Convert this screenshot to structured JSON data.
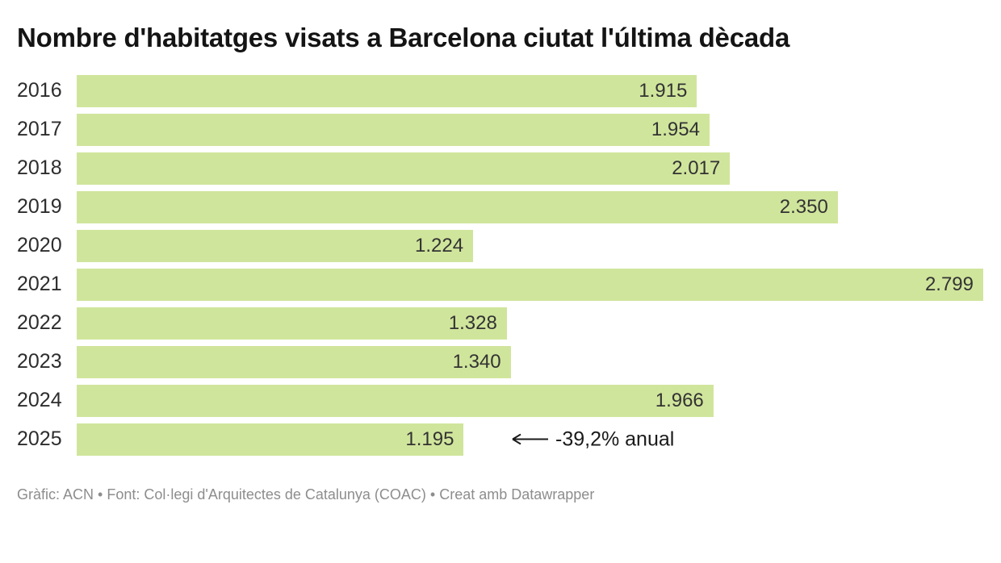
{
  "header": {
    "title": "Nombre d'habitatges visats a Barcelona ciutat l'última dècada"
  },
  "annotation": {
    "row": "2025",
    "arrow_icon": "left-arrow",
    "text": "-39,2% anual"
  },
  "footer": {
    "text": "Gràfic: ACN • Font: Col·legi d'Arquitectes de Catalunya (COAC) • Creat amb Datawrapper"
  },
  "colors": {
    "bar": "#d0e59c",
    "title": "#141414",
    "axis_label": "#2d2d2d",
    "value_label": "#333333",
    "annotation": "#1a1a1a",
    "footer": "#8d8d8d",
    "background": "#ffffff"
  },
  "chart_data": {
    "type": "bar",
    "orientation": "horizontal",
    "title": "Nombre d'habitatges visats a Barcelona ciutat l'última dècada",
    "categories": [
      "2016",
      "2017",
      "2018",
      "2019",
      "2020",
      "2021",
      "2022",
      "2023",
      "2024",
      "2025"
    ],
    "values": [
      1915,
      1954,
      2017,
      2350,
      1224,
      2799,
      1328,
      1340,
      1966,
      1195
    ],
    "value_labels": [
      "1.915",
      "1.954",
      "2.017",
      "2.350",
      "1.224",
      "2.799",
      "1.328",
      "1.340",
      "1.966",
      "1.195"
    ],
    "xlabel": "",
    "ylabel": "",
    "xlim": [
      0,
      2799
    ],
    "grid": false,
    "legend": false,
    "value_label_position": "inside-end",
    "annotations": [
      {
        "category": "2025",
        "text": "-39,2% anual",
        "arrow": "pointing-left-at-bar-end"
      }
    ]
  }
}
